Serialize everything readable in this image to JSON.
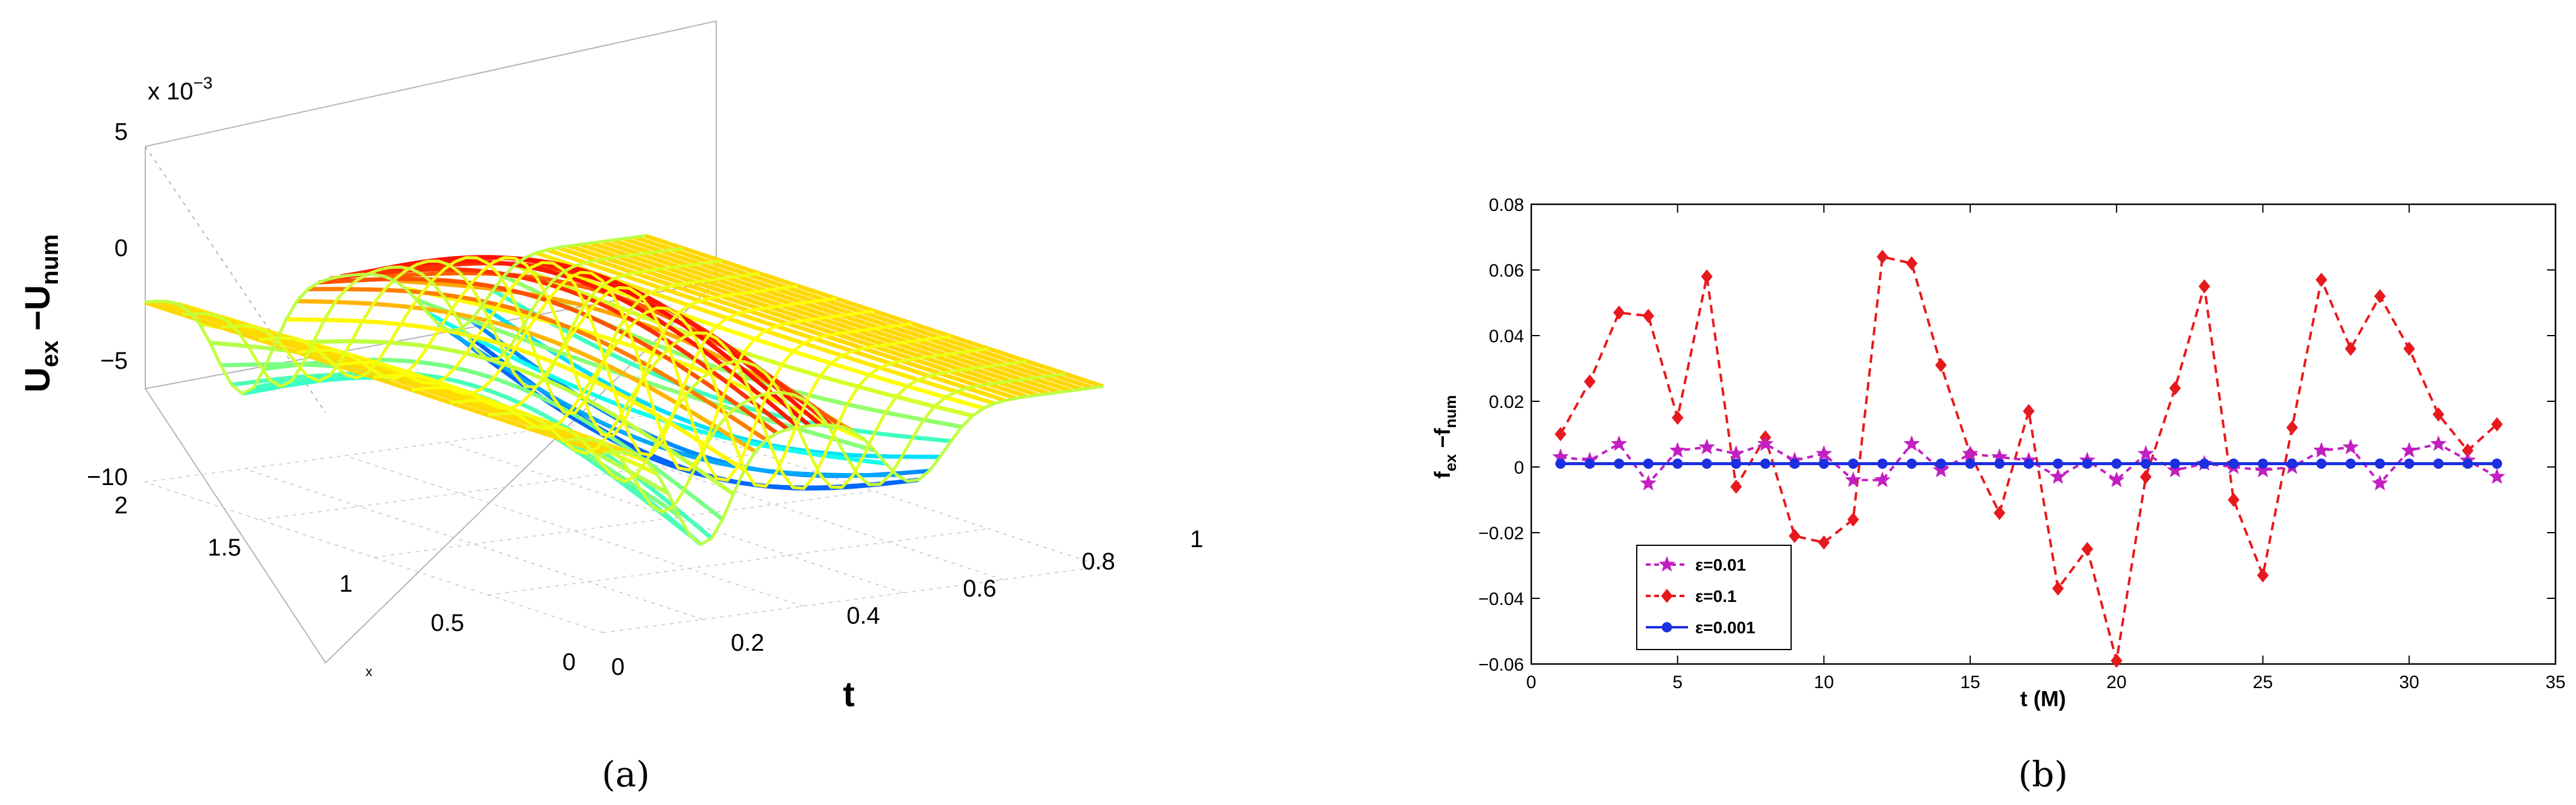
{
  "caption_a": "(a)",
  "caption_b": "(b)",
  "chart_data": [
    {
      "type": "surface",
      "panel": "a",
      "zlabel_main": "U",
      "zlabel_sub1": "ex",
      "zlabel_mid": " −U",
      "zlabel_sub2": "num",
      "zscale_prefix": "x 10",
      "zscale_exp": "−3",
      "xlabel": "x",
      "tlabel": "t",
      "z_ticks": [
        "5",
        "0",
        "−5",
        "−10"
      ],
      "x_ticks": [
        "2",
        "1.5",
        "1",
        "0.5",
        "0"
      ],
      "t_ticks": [
        "0",
        "0.2",
        "0.4",
        "0.6",
        "0.8",
        "1"
      ],
      "zlim": [
        -10,
        5
      ],
      "xlim": [
        0,
        2
      ],
      "tlim": [
        0,
        1
      ],
      "colormap": "jet"
    },
    {
      "type": "line",
      "panel": "b",
      "xlabel": "t (M)",
      "ylabel_main": "f",
      "ylabel_sub1": "ex",
      "ylabel_mid": " −f",
      "ylabel_sub2": "num",
      "xlim": [
        0,
        35
      ],
      "ylim": [
        -0.06,
        0.08
      ],
      "x_ticks": [
        "0",
        "5",
        "10",
        "15",
        "20",
        "25",
        "30",
        "35"
      ],
      "y_ticks": [
        "0.08",
        "0.06",
        "0.04",
        "0.02",
        "0",
        "−0.02",
        "−0.04",
        "−0.06"
      ],
      "x": [
        1,
        2,
        3,
        4,
        5,
        6,
        7,
        8,
        9,
        10,
        11,
        12,
        13,
        14,
        15,
        16,
        17,
        18,
        19,
        20,
        21,
        22,
        23,
        24,
        25,
        26,
        27,
        28,
        29,
        30,
        31,
        32,
        33
      ],
      "series": [
        {
          "name": "ε=0.01",
          "color": "#c21fc2",
          "marker": "star",
          "dash": "10,8",
          "values": [
            0.003,
            0.002,
            0.007,
            -0.005,
            0.005,
            0.006,
            0.004,
            0.007,
            0.002,
            0.004,
            -0.004,
            -0.004,
            0.007,
            -0.001,
            0.004,
            0.003,
            0.002,
            -0.003,
            0.002,
            -0.004,
            0.004,
            -0.001,
            0.001,
            0.0,
            -0.001,
            0.0,
            0.005,
            0.006,
            -0.005,
            0.005,
            0.007,
            0.002,
            -0.003
          ]
        },
        {
          "name": "ε=0.1",
          "color": "#e8191c",
          "marker": "diamond",
          "dash": "14,9",
          "values": [
            0.01,
            0.026,
            0.047,
            0.046,
            0.015,
            0.058,
            -0.006,
            0.009,
            -0.021,
            -0.023,
            -0.016,
            0.064,
            0.062,
            0.031,
            0.004,
            -0.014,
            0.017,
            -0.037,
            -0.025,
            -0.059,
            -0.003,
            0.024,
            0.055,
            -0.01,
            -0.033,
            0.012,
            0.057,
            0.036,
            0.052,
            0.036,
            0.016,
            0.005,
            0.013
          ]
        },
        {
          "name": "ε=0.001",
          "color": "#1b2fe0",
          "marker": "circle",
          "dash": "",
          "values": [
            0.001,
            0.001,
            0.001,
            0.001,
            0.001,
            0.001,
            0.001,
            0.001,
            0.001,
            0.001,
            0.001,
            0.001,
            0.001,
            0.001,
            0.001,
            0.001,
            0.001,
            0.001,
            0.001,
            0.001,
            0.001,
            0.001,
            0.001,
            0.001,
            0.001,
            0.001,
            0.001,
            0.001,
            0.001,
            0.001,
            0.001,
            0.001,
            0.001
          ]
        }
      ]
    }
  ]
}
